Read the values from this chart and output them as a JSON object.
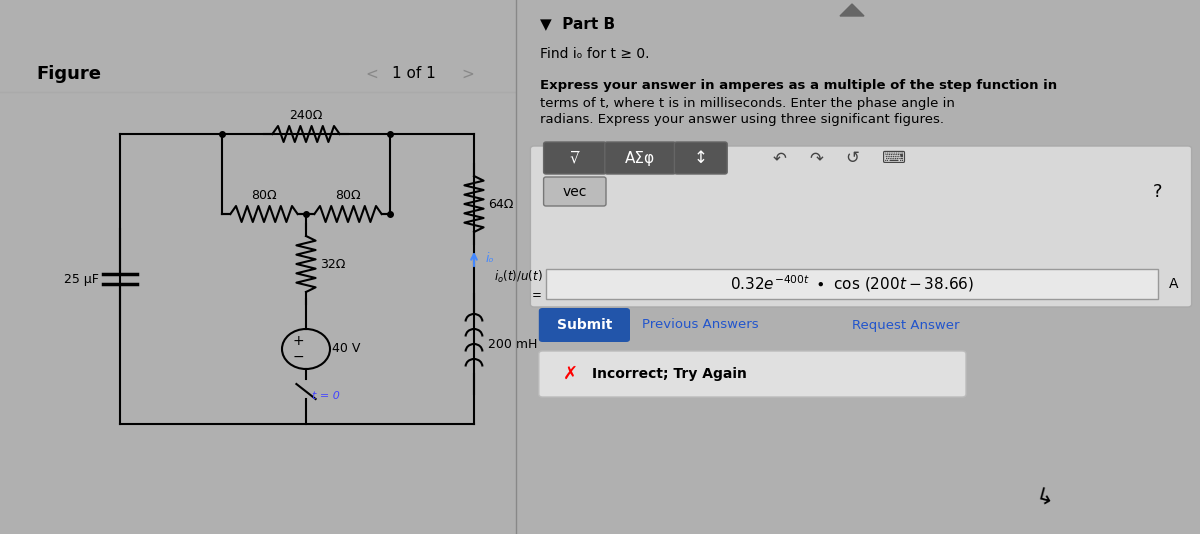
{
  "bg_color": "#d0d0d0",
  "left_panel_bg": "#c8c8c8",
  "right_panel_bg": "#cccccc",
  "figure_label": "Figure",
  "nav_text": "1 of 1",
  "part_label": "Part B",
  "find_text": "Find iₒ for t ≥ 0.",
  "express_text": "Express your answer in amperes as a multiple of the step function in\nterms of t, where t is in milliseconds. Enter the phase angle in\nradians. Express your answer using three significant figures.",
  "resistor_240": "240Ω",
  "resistor_80a": "80Ω",
  "resistor_80b": "80Ω",
  "resistor_32": "32Ω",
  "resistor_64": "64Ω",
  "inductor_200": "200 mH",
  "capacitor_25": "25 μF",
  "voltage_40": "40 V",
  "switch_text": "t = 0",
  "io_label": "iₒ",
  "answer_label": "iₒ(t)/u(t)\n=",
  "answer_value": "0.32e⁻⁴⁰⁰ᵗ • cos (200t − 38.66)",
  "submit_text": "Submit",
  "prev_ans_text": "Previous Answers",
  "req_ans_text": "Request Answer",
  "incorrect_text": "Incorrect; Try Again",
  "vec_text": "vec",
  "toolbar_text": "√̅ AΣφ ↕"
}
